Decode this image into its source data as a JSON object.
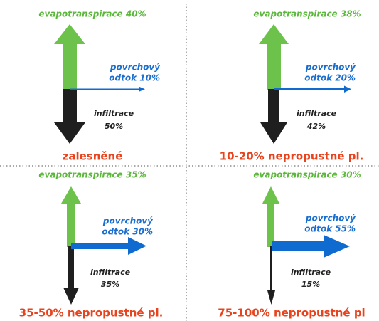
{
  "panels": [
    {
      "evapotranspiration": "evapotranspirace 40%",
      "runoff_line1": "povrchový",
      "runoff_line2": "odtok 10%",
      "infiltration_label": "infiltrace",
      "infiltration_value": "50%",
      "caption": "zalesněné"
    },
    {
      "evapotranspiration": "evapotranspirace 38%",
      "runoff_line1": "povrchový",
      "runoff_line2": "odtok 20%",
      "infiltration_label": "infiltrace",
      "infiltration_value": "42%",
      "caption": "10-20% nepropustné pl."
    },
    {
      "evapotranspiration": "evapotranspirace 35%",
      "runoff_line1": "povrchový",
      "runoff_line2": "odtok 30%",
      "infiltration_label": "infiltrace",
      "infiltration_value": "35%",
      "caption": "35-50% nepropustné pl."
    },
    {
      "evapotranspiration": "evapotranspirace 30%",
      "runoff_line1": "povrchový",
      "runoff_line2": "odtok 55%",
      "infiltration_label": "infiltrace",
      "infiltration_value": "15%",
      "caption": "75-100% nepropustné pl"
    }
  ]
}
